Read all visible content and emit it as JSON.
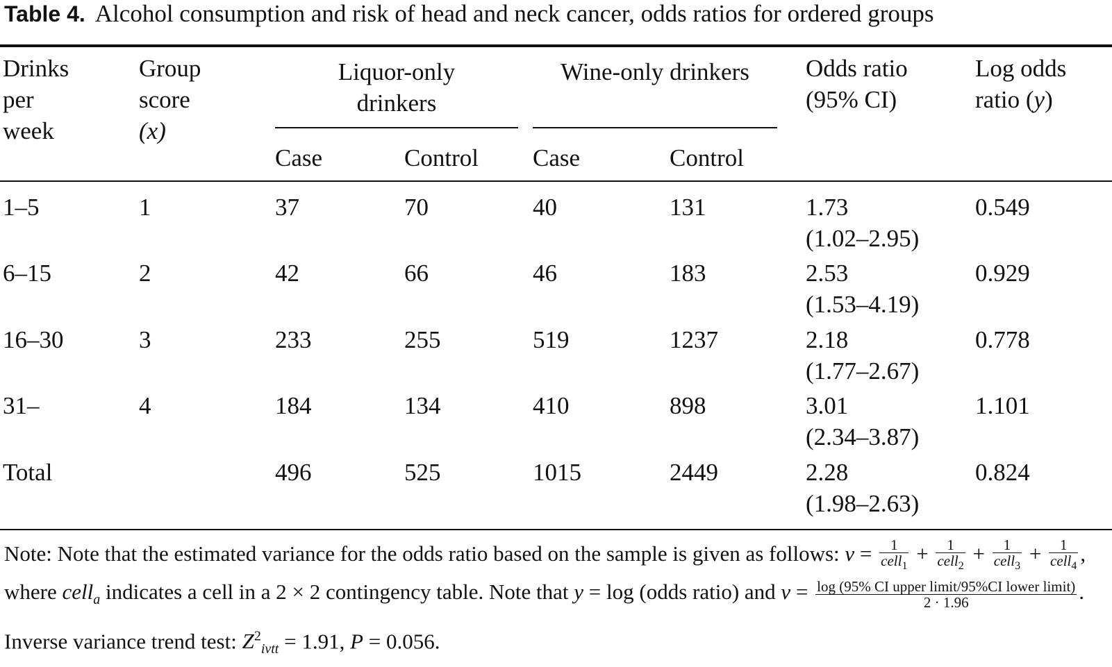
{
  "caption": {
    "label": "Table 4.",
    "text": "Alcohol consumption and risk of head and neck cancer, odds ratios for ordered groups"
  },
  "headers": {
    "drinks": [
      "Drinks",
      "per",
      "week"
    ],
    "group_score": [
      "Group",
      "score"
    ],
    "group_score_var": "(x)",
    "liquor": [
      "Liquor-only",
      "drinkers"
    ],
    "wine": "Wine-only drinkers",
    "odds_ratio": [
      "Odds ratio",
      "(95% CI)"
    ],
    "log_odds": [
      "Log odds",
      "ratio ("
    ],
    "log_odds_var": "y",
    "log_odds_close": ")",
    "case": "Case",
    "control": "Control"
  },
  "rows": [
    {
      "drinks": "1–5",
      "score": "1",
      "liq_case": "37",
      "liq_control": "70",
      "wine_case": "40",
      "wine_control": "131",
      "or": "1.73",
      "ci": "(1.02–2.95)",
      "log": "0.549"
    },
    {
      "drinks": "6–15",
      "score": "2",
      "liq_case": "42",
      "liq_control": "66",
      "wine_case": "46",
      "wine_control": "183",
      "or": "2.53",
      "ci": "(1.53–4.19)",
      "log": "0.929"
    },
    {
      "drinks": "16–30",
      "score": "3",
      "liq_case": "233",
      "liq_control": "255",
      "wine_case": "519",
      "wine_control": "1237",
      "or": "2.18",
      "ci": "(1.77–2.67)",
      "log": "0.778"
    },
    {
      "drinks": "31–",
      "score": "4",
      "liq_case": "184",
      "liq_control": "134",
      "wine_case": "410",
      "wine_control": "898",
      "or": "3.01",
      "ci": "(2.34–3.87)",
      "log": "1.101"
    },
    {
      "drinks": "Total",
      "score": "",
      "liq_case": "496",
      "liq_control": "525",
      "wine_case": "1015",
      "wine_control": "2449",
      "or": "2.28",
      "ci": "(1.98–2.63)",
      "log": "0.824"
    }
  ],
  "note": {
    "intro": "Note: Note that the estimated variance for the odds ratio based on the sample is given as follows: ",
    "v": "v",
    "eq": " = ",
    "plus": " + ",
    "one": "1",
    "cell": "cell",
    "subs": [
      "1",
      "2",
      "3",
      "4"
    ],
    "where": ", where ",
    "cell_a_sub": "a",
    "contingency": " indicates a cell in a 2 × 2 contingency table. Note that ",
    "y": "y",
    "y_def": " = log (odds ratio) and ",
    "v_num": "log (95% CI upper limit/95%CI lower limit)",
    "v_den": "2 · 1.96",
    "trend": ". Inverse variance trend test: ",
    "z": "Z",
    "z_sup": "2",
    "z_sub": "ivtt",
    "z_val": " = 1.91, ",
    "p": "P",
    "p_val": " = 0.056."
  }
}
